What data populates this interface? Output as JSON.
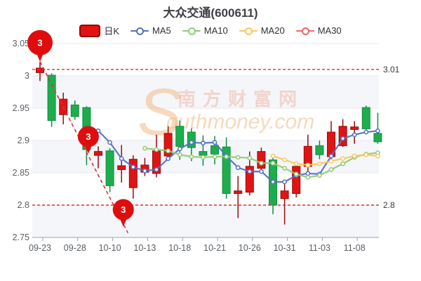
{
  "title": "大众交通(600611)",
  "legend": [
    {
      "label": "日K",
      "type": "candle",
      "color": "#e31212",
      "border": "#8f0000"
    },
    {
      "label": "MA5",
      "type": "line",
      "color": "#5470c6"
    },
    {
      "label": "MA10",
      "type": "line",
      "color": "#91cc75"
    },
    {
      "label": "MA20",
      "type": "line",
      "color": "#fac858"
    },
    {
      "label": "MA30",
      "type": "line",
      "color": "#ee6666"
    }
  ],
  "watermark": {
    "big_s": "S",
    "cn": "南方财富网",
    "en": "outhmoney.com"
  },
  "chart_data": {
    "type": "candlestick",
    "title": "大众交通(600611)",
    "x_tick_labels": [
      "09-23",
      "09-28",
      "10-10",
      "10-13",
      "10-18",
      "10-21",
      "10-26",
      "10-31",
      "11-03",
      "11-08"
    ],
    "x_tick_every_n_candles": 3,
    "y_ticks": [
      "3.05",
      "3",
      "2.95",
      "2.9",
      "2.85",
      "2.8",
      "2.75"
    ],
    "y_tick_values": [
      3.05,
      3.0,
      2.95,
      2.9,
      2.85,
      2.8,
      2.75
    ],
    "ylim": [
      2.75,
      3.05
    ],
    "grid": true,
    "legend_position": "top",
    "up_color": "#e01414",
    "up_border": "#9b0a0a",
    "down_color": "#1ead4d",
    "down_border": "#0f8f3f",
    "candles_ohlc": [
      [
        3.005,
        3.012,
        2.992,
        3.022
      ],
      [
        3.001,
        2.931,
        2.921,
        3.004
      ],
      [
        2.94,
        2.964,
        2.925,
        2.974
      ],
      [
        2.955,
        2.937,
        2.932,
        2.962
      ],
      [
        2.951,
        2.886,
        2.862,
        2.953
      ],
      [
        2.877,
        2.883,
        2.857,
        2.891
      ],
      [
        2.884,
        2.83,
        2.82,
        2.888
      ],
      [
        2.855,
        2.861,
        2.835,
        2.893
      ],
      [
        2.827,
        2.871,
        2.81,
        2.877
      ],
      [
        2.851,
        2.862,
        2.845,
        2.873
      ],
      [
        2.849,
        2.884,
        2.843,
        2.909
      ],
      [
        2.876,
        2.911,
        2.871,
        2.922
      ],
      [
        2.922,
        2.891,
        2.87,
        2.931
      ],
      [
        2.913,
        2.889,
        2.868,
        2.919
      ],
      [
        2.883,
        2.877,
        2.861,
        2.908
      ],
      [
        2.892,
        2.879,
        2.863,
        2.907
      ],
      [
        2.89,
        2.818,
        2.81,
        2.905
      ],
      [
        2.818,
        2.822,
        2.78,
        2.845
      ],
      [
        2.82,
        2.86,
        2.815,
        2.883
      ],
      [
        2.857,
        2.883,
        2.849,
        2.889
      ],
      [
        2.87,
        2.8,
        2.786,
        2.875
      ],
      [
        2.81,
        2.822,
        2.77,
        2.835
      ],
      [
        2.818,
        2.86,
        2.812,
        2.867
      ],
      [
        2.86,
        2.891,
        2.84,
        2.909
      ],
      [
        2.892,
        2.878,
        2.871,
        2.9
      ],
      [
        2.875,
        2.913,
        2.87,
        2.93
      ],
      [
        2.892,
        2.922,
        2.89,
        2.933
      ],
      [
        2.917,
        2.921,
        2.895,
        2.93
      ],
      [
        2.951,
        2.918,
        2.915,
        2.954
      ],
      [
        2.911,
        2.898,
        2.895,
        2.943
      ]
    ],
    "series": [
      {
        "name": "MA5",
        "color": "#5470c6",
        "start_index": 4,
        "values": [
          2.92,
          2.915,
          2.897,
          2.872,
          2.859,
          2.853,
          2.855,
          2.872,
          2.887,
          2.897,
          2.896,
          2.897,
          2.876,
          2.858,
          2.852,
          2.852,
          2.836,
          2.836,
          2.846,
          2.849,
          2.848,
          2.876,
          2.903,
          2.909,
          2.913,
          2.915
        ]
      },
      {
        "name": "MA10",
        "color": "#91cc75",
        "start_index": 9,
        "values": [
          2.888,
          2.886,
          2.884,
          2.878,
          2.875,
          2.874,
          2.875,
          2.875,
          2.874,
          2.873,
          2.865,
          2.865,
          2.857,
          2.848,
          2.843,
          2.846,
          2.855,
          2.864,
          2.874,
          2.879,
          2.881
        ]
      },
      {
        "name": "MA20",
        "color": "#fac858",
        "start_index": 20,
        "values": [
          2.876,
          2.87,
          2.864,
          2.862,
          2.864,
          2.868,
          2.872,
          2.876,
          2.878,
          2.876
        ]
      },
      {
        "name": "MA30",
        "color": "#ee6666",
        "start_index": null,
        "values": []
      }
    ],
    "mark_lines": [
      {
        "label": "3.01",
        "value": 3.01,
        "color": "#e03030"
      },
      {
        "label": "2.8",
        "value": 2.8,
        "color": "#e03030"
      }
    ],
    "mark_points": [
      {
        "label": "3",
        "x_index": 0.0,
        "anchor_price": 3.022,
        "radius": 18,
        "color": "#df0d0d"
      },
      {
        "label": "3",
        "x_index": 4.15,
        "anchor_price": 2.88,
        "radius": 15,
        "color": "#df0d0d"
      },
      {
        "label": "3",
        "x_index": 7.15,
        "anchor_price": 2.767,
        "radius": 15,
        "color": "#df0d0d"
      }
    ],
    "trend_line": {
      "from_index": 0.0,
      "from_price": 3.022,
      "to_index": 7.55,
      "to_price": 2.757,
      "color": "#e03030",
      "dashed": true
    }
  },
  "colors": {
    "grid_line": "#e8eaf1",
    "band_fill": "#f5f6fa",
    "axis_line": "#9aa2ac",
    "axis_text": "#5a6066",
    "markline_label_text": "#37383b",
    "watermark_orange": "rgba(240,185,135,0.55)",
    "watermark_pink": "rgba(235,165,140,0.42)"
  }
}
